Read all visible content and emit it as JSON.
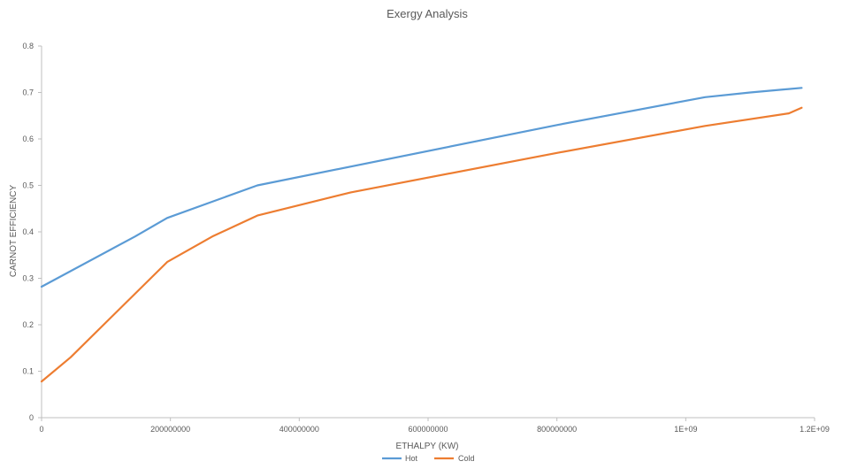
{
  "chart_data": {
    "type": "line",
    "title": "Exergy Analysis",
    "xlabel": "ETHALPY (KW)",
    "ylabel": "CARNOT EFFICIENCY",
    "xlim": [
      0,
      1200000000
    ],
    "ylim": [
      0,
      0.8
    ],
    "x_ticks": [
      {
        "value": 0,
        "label": "0"
      },
      {
        "value": 200000000,
        "label": "200000000"
      },
      {
        "value": 400000000,
        "label": "400000000"
      },
      {
        "value": 600000000,
        "label": "600000000"
      },
      {
        "value": 800000000,
        "label": "800000000"
      },
      {
        "value": 1000000000,
        "label": "1E+09"
      },
      {
        "value": 1200000000,
        "label": "1.2E+09"
      }
    ],
    "y_ticks": [
      {
        "value": 0,
        "label": "0"
      },
      {
        "value": 0.1,
        "label": "0.1"
      },
      {
        "value": 0.2,
        "label": "0.2"
      },
      {
        "value": 0.3,
        "label": "0.3"
      },
      {
        "value": 0.4,
        "label": "0.4"
      },
      {
        "value": 0.5,
        "label": "0.5"
      },
      {
        "value": 0.6,
        "label": "0.6"
      },
      {
        "value": 0.7,
        "label": "0.7"
      },
      {
        "value": 0.8,
        "label": "0.8"
      }
    ],
    "grid": false,
    "legend_position": "bottom",
    "series": [
      {
        "name": "Hot",
        "color": "#5B9BD5",
        "points": [
          [
            0,
            0.282
          ],
          [
            145000000,
            0.39
          ],
          [
            195000000,
            0.43
          ],
          [
            335000000,
            0.5
          ],
          [
            800000000,
            0.63
          ],
          [
            1030000000,
            0.69
          ],
          [
            1100000000,
            0.7
          ],
          [
            1180000000,
            0.71
          ]
        ]
      },
      {
        "name": "Cold",
        "color": "#ED7D31",
        "points": [
          [
            0,
            0.078
          ],
          [
            45000000,
            0.13
          ],
          [
            195000000,
            0.335
          ],
          [
            265000000,
            0.39
          ],
          [
            335000000,
            0.435
          ],
          [
            480000000,
            0.485
          ],
          [
            800000000,
            0.57
          ],
          [
            1030000000,
            0.628
          ],
          [
            1160000000,
            0.655
          ],
          [
            1180000000,
            0.667
          ]
        ]
      }
    ]
  }
}
